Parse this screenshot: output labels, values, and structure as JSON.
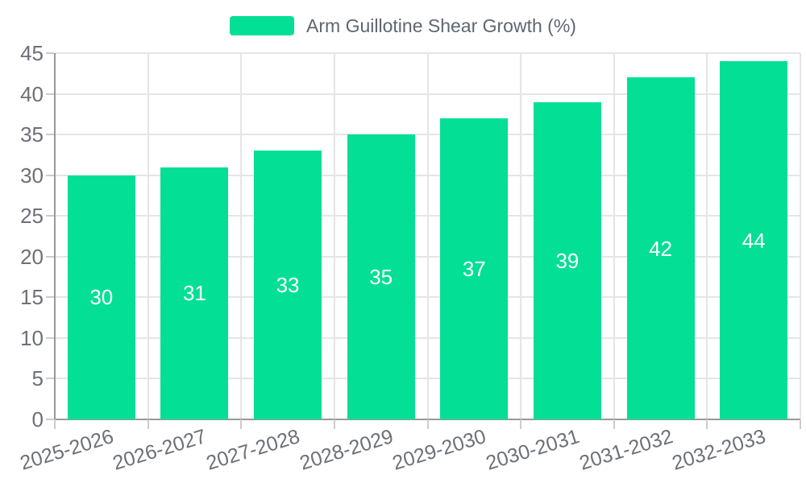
{
  "chart_data": {
    "type": "bar",
    "title": "Arm Guillotine Shear Growth (%)",
    "legend_entries": [
      "Arm Guillotine Shear Growth (%)"
    ],
    "legend_position": "top-center",
    "categories": [
      "2025-2026",
      "2026-2027",
      "2027-2028",
      "2028-2029",
      "2029-2030",
      "2030-2031",
      "2031-2032",
      "2032-2033"
    ],
    "values": [
      30,
      31,
      33,
      35,
      37,
      39,
      42,
      44
    ],
    "series": [
      {
        "name": "Arm Guillotine Shear Growth (%)",
        "values": [
          30,
          31,
          33,
          35,
          37,
          39,
          42,
          44
        ]
      }
    ],
    "xlabel": "",
    "ylabel": "",
    "ylim": [
      0,
      45
    ],
    "yticks": [
      0,
      5,
      10,
      15,
      20,
      25,
      30,
      35,
      40,
      45
    ],
    "grid": true,
    "bar_value_labels_inside": true,
    "x_label_rotation_deg": -17,
    "colors": {
      "bar": "#03df95",
      "bar_label": "#ffffff",
      "axis_label": "#6e7079",
      "legend_text": "#5f6670",
      "grid_line": "#e5e5e5",
      "axis_line": "#999999",
      "tick": "#cccccc",
      "background": "#ffffff"
    }
  }
}
